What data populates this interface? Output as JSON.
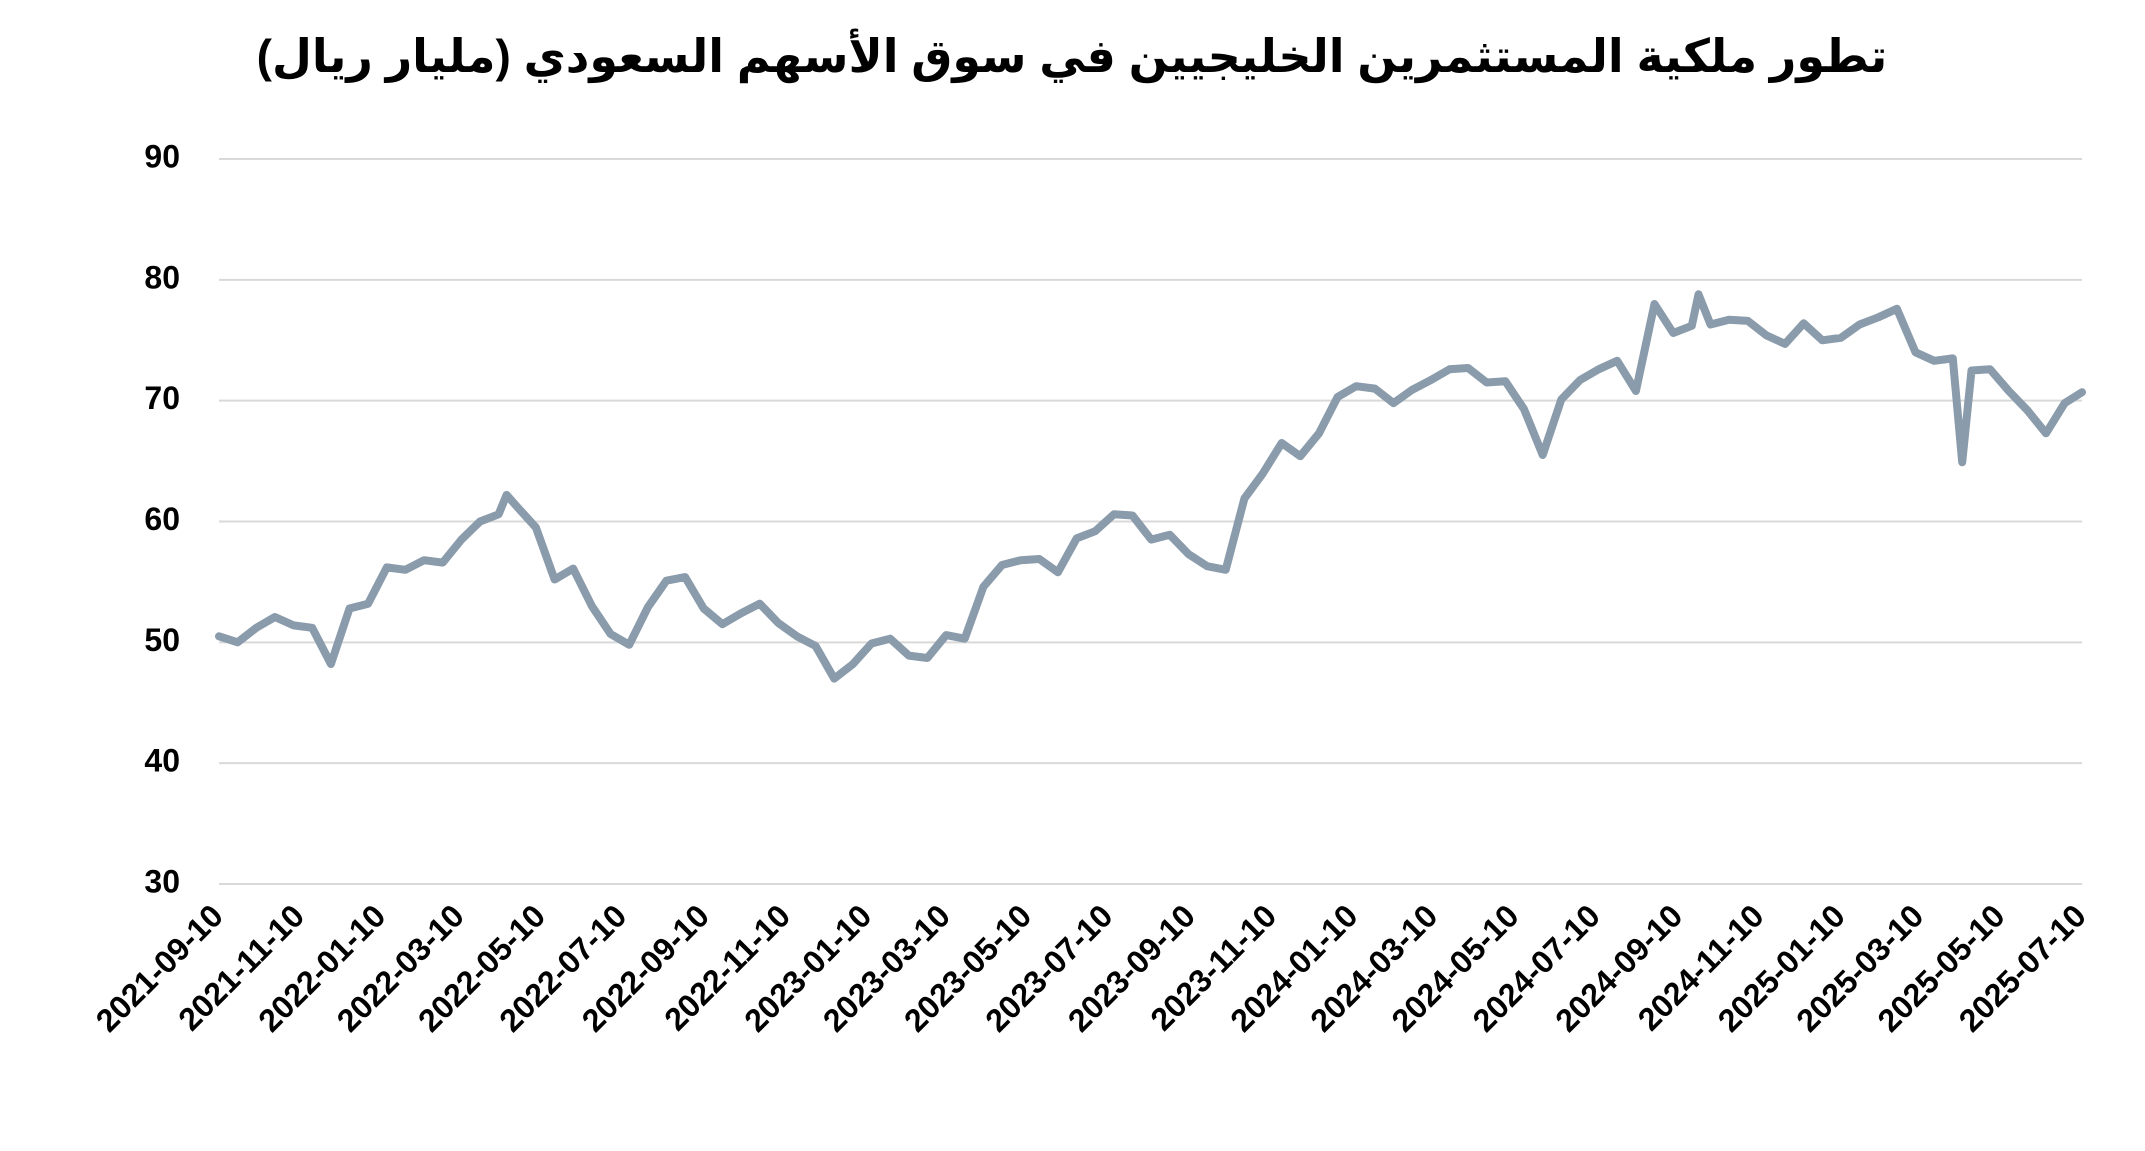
{
  "chart_data": {
    "type": "line",
    "title": "تطور ملكية المستثمرين الخليجيين في سوق الأسهم السعودي (مليار ريال)",
    "x": [
      "2021-09-10",
      "2021-09-24",
      "2021-10-08",
      "2021-10-22",
      "2021-11-05",
      "2021-11-19",
      "2021-12-03",
      "2021-12-17",
      "2021-12-31",
      "2022-01-14",
      "2022-01-28",
      "2022-02-11",
      "2022-02-25",
      "2022-03-11",
      "2022-03-25",
      "2022-04-08",
      "2022-04-14",
      "2022-04-22",
      "2022-05-06",
      "2022-05-20",
      "2022-06-03",
      "2022-06-17",
      "2022-07-01",
      "2022-07-15",
      "2022-07-29",
      "2022-08-12",
      "2022-08-26",
      "2022-09-09",
      "2022-09-23",
      "2022-10-07",
      "2022-10-21",
      "2022-11-04",
      "2022-11-18",
      "2022-12-02",
      "2022-12-16",
      "2022-12-30",
      "2023-01-13",
      "2023-01-27",
      "2023-02-10",
      "2023-02-24",
      "2023-03-10",
      "2023-03-24",
      "2023-04-07",
      "2023-04-21",
      "2023-05-05",
      "2023-05-19",
      "2023-06-02",
      "2023-06-16",
      "2023-06-30",
      "2023-07-14",
      "2023-07-28",
      "2023-08-11",
      "2023-08-25",
      "2023-09-08",
      "2023-09-22",
      "2023-10-06",
      "2023-10-20",
      "2023-11-03",
      "2023-11-17",
      "2023-12-01",
      "2023-12-15",
      "2023-12-29",
      "2024-01-12",
      "2024-01-26",
      "2024-02-09",
      "2024-02-23",
      "2024-03-08",
      "2024-03-22",
      "2024-04-05",
      "2024-04-19",
      "2024-05-03",
      "2024-05-17",
      "2024-05-31",
      "2024-06-14",
      "2024-06-28",
      "2024-07-12",
      "2024-07-26",
      "2024-08-09",
      "2024-08-23",
      "2024-09-06",
      "2024-09-20",
      "2024-09-25",
      "2024-10-04",
      "2024-10-18",
      "2024-11-01",
      "2024-11-15",
      "2024-11-29",
      "2024-12-13",
      "2024-12-27",
      "2025-01-10",
      "2025-01-24",
      "2025-02-07",
      "2025-02-21",
      "2025-03-07",
      "2025-03-21",
      "2025-04-04",
      "2025-04-11",
      "2025-04-18",
      "2025-05-02",
      "2025-05-16",
      "2025-05-30",
      "2025-06-13",
      "2025-06-27",
      "2025-07-10"
    ],
    "series": [
      {
        "name": "ملكية المستثمرين الخليجيين",
        "color": "#8a9bab",
        "values": [
          50.5,
          50.0,
          51.2,
          52.1,
          51.4,
          51.2,
          48.2,
          52.8,
          53.2,
          56.2,
          56.0,
          56.8,
          56.6,
          58.5,
          60.0,
          60.6,
          62.2,
          61.2,
          59.5,
          55.2,
          56.1,
          53.0,
          50.7,
          49.8,
          52.9,
          55.1,
          55.4,
          52.8,
          51.5,
          52.4,
          53.2,
          51.6,
          50.5,
          49.7,
          47.0,
          48.2,
          49.9,
          50.3,
          48.9,
          48.7,
          50.6,
          50.3,
          54.6,
          56.4,
          56.8,
          56.9,
          55.8,
          58.6,
          59.2,
          60.6,
          60.5,
          58.5,
          58.9,
          57.3,
          56.3,
          56.0,
          61.9,
          64.0,
          66.5,
          65.4,
          67.3,
          70.3,
          71.2,
          71.0,
          69.8,
          70.9,
          71.7,
          72.6,
          72.7,
          71.5,
          71.6,
          69.3,
          65.5,
          70.1,
          71.7,
          72.6,
          73.3,
          70.8,
          78.0,
          75.6,
          76.2,
          78.8,
          76.3,
          76.7,
          76.6,
          75.4,
          74.7,
          76.4,
          75.0,
          75.2,
          76.3,
          76.9,
          77.6,
          74.0,
          73.3,
          73.5,
          64.9,
          72.5,
          72.6,
          70.8,
          69.2,
          67.3,
          69.8,
          70.7
        ]
      }
    ],
    "xlim": [
      "2021-09-10",
      "2025-07-10"
    ],
    "xticks": [
      "2021-09-10",
      "2021-11-10",
      "2022-01-10",
      "2022-03-10",
      "2022-05-10",
      "2022-07-10",
      "2022-09-10",
      "2022-11-10",
      "2023-01-10",
      "2023-03-10",
      "2023-05-10",
      "2023-07-10",
      "2023-09-10",
      "2023-11-10",
      "2024-01-10",
      "2024-03-10",
      "2024-05-10",
      "2024-07-10",
      "2024-09-10",
      "2024-11-10",
      "2025-01-10",
      "2025-03-10",
      "2025-05-10",
      "2025-07-10"
    ],
    "ylim": [
      30,
      90
    ],
    "yticks": [
      30,
      40,
      50,
      60,
      70,
      80,
      90
    ],
    "grid": true
  }
}
